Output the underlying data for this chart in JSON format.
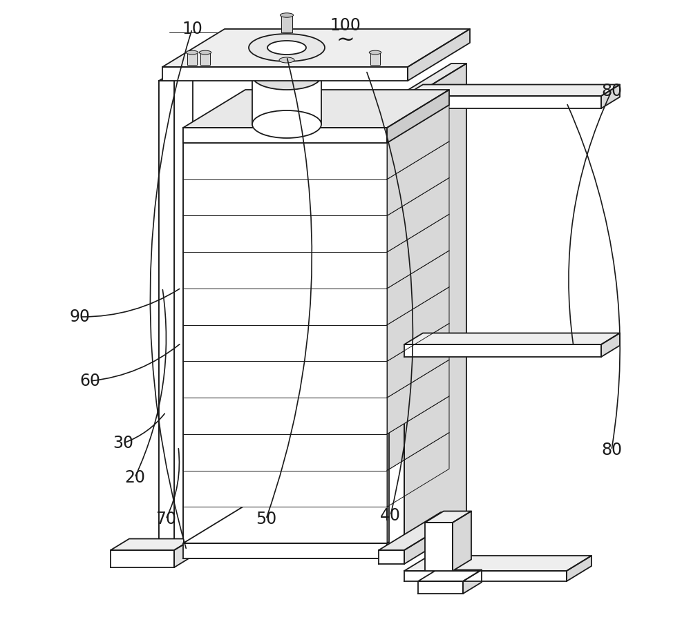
{
  "bg_color": "#ffffff",
  "line_color": "#1a1a1a",
  "lw": 1.3,
  "lw_thin": 0.7,
  "label_fontsize": 17,
  "fig_width": 10.0,
  "fig_height": 9.17
}
